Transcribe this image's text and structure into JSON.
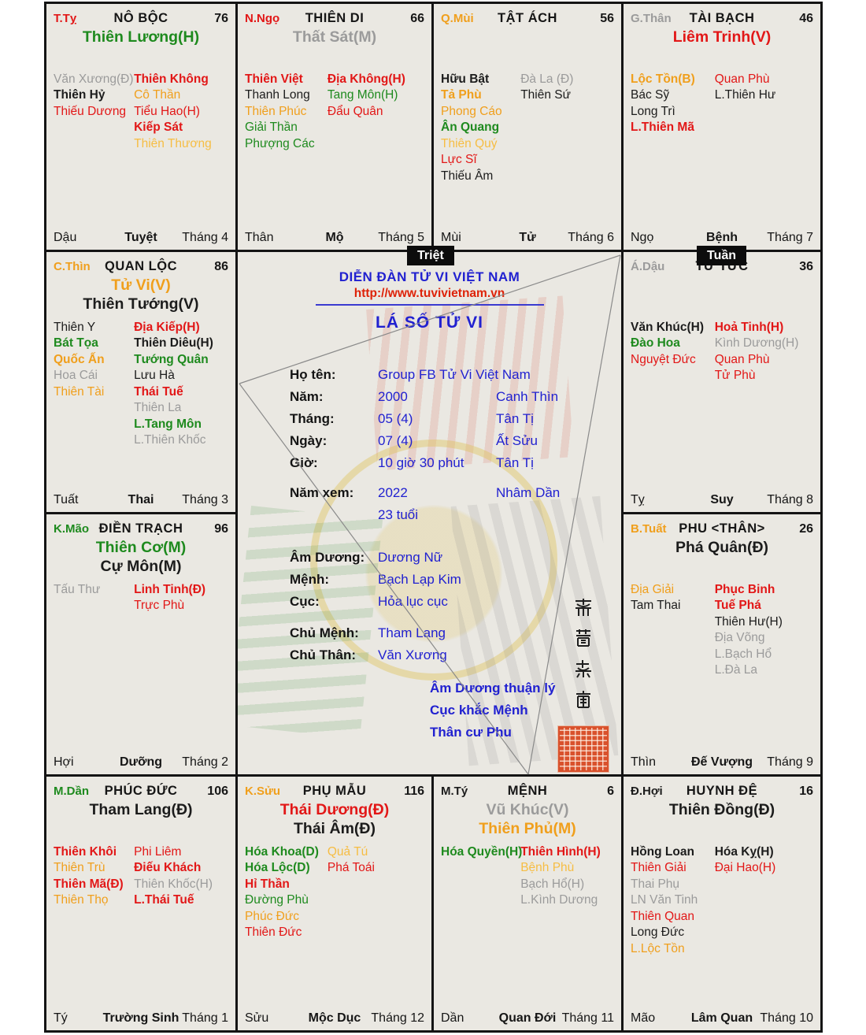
{
  "badges": {
    "triet": "Triệt",
    "tuan": "Tuần"
  },
  "center": {
    "site_title": "DIỄN ĐÀN TỬ VI VIỆT NAM",
    "site_url": "http://www.tuvivietnam.vn",
    "chart_title": "LÁ SỐ TỬ VI",
    "info": [
      {
        "label": "Họ tên:",
        "value": "Group FB Tử Vi Việt Nam",
        "extra": ""
      },
      {
        "label": "Năm:",
        "value": "2000",
        "extra": "Canh Thìn"
      },
      {
        "label": "Tháng:",
        "value": "05 (4)",
        "extra": "Tân Tị"
      },
      {
        "label": "Ngày:",
        "value": "07 (4)",
        "extra": "Ất Sửu"
      },
      {
        "label": "Giờ:",
        "value": "10 giờ 30 phút",
        "extra": "Tân Tị"
      }
    ],
    "nam_xem": {
      "label": "Năm xem:",
      "value": "2022",
      "extra": "Nhâm Dần",
      "age": "23 tuổi"
    },
    "attrs": [
      {
        "label": "Âm Dương:",
        "value": "Dương Nữ"
      },
      {
        "label": "Mệnh:",
        "value": "Bạch Lạp Kim"
      },
      {
        "label": "Cục:",
        "value": "Hỏa lục cục"
      }
    ],
    "chu": [
      {
        "label": "Chủ Mệnh:",
        "value": "Tham Lang"
      },
      {
        "label": "Chủ Thân:",
        "value": "Văn Xương"
      }
    ],
    "notes": [
      "Âm Dương thuận lý",
      "Cục khắc Mệnh",
      "Thân cư Phu"
    ],
    "seal_text": "紫微越南"
  },
  "palaces": [
    {
      "corner": "T.Tỵ",
      "corner_c": "red",
      "name": "NÔ BỘC",
      "num": "76",
      "mains": [
        {
          "t": "Thiên Lương(H)",
          "c": "green",
          "b": true
        }
      ],
      "left": [
        {
          "t": "Văn Xương(Đ)",
          "c": "gray"
        },
        {
          "t": "Thiên Hỷ",
          "c": "black",
          "b": true
        },
        {
          "t": "Thiếu Dương",
          "c": "red"
        }
      ],
      "right": [
        {
          "t": "Thiên Không",
          "c": "red",
          "b": true
        },
        {
          "t": "Cô Thần",
          "c": "orange"
        },
        {
          "t": "Tiểu Hao(H)",
          "c": "red"
        },
        {
          "t": "Kiếp Sát",
          "c": "red",
          "b": true
        },
        {
          "t": "Thiên Thương",
          "c": "yellow"
        }
      ],
      "foot": {
        "branch": "Dậu",
        "stage": "Tuyệt",
        "month": "Tháng 4"
      }
    },
    {
      "corner": "N.Ngọ",
      "corner_c": "red",
      "name": "THIÊN DI",
      "num": "66",
      "mains": [
        {
          "t": "Thất Sát(M)",
          "c": "gray",
          "b": true
        }
      ],
      "left": [
        {
          "t": "Thiên Việt",
          "c": "red",
          "b": true
        },
        {
          "t": "Thanh Long",
          "c": "black"
        },
        {
          "t": "Thiên Phúc",
          "c": "orange"
        },
        {
          "t": "Giải Thần",
          "c": "green"
        },
        {
          "t": "Phượng Các",
          "c": "green"
        }
      ],
      "right": [
        {
          "t": "Địa Không(H)",
          "c": "red",
          "b": true
        },
        {
          "t": "Tang Môn(H)",
          "c": "green"
        },
        {
          "t": "Đẩu Quân",
          "c": "red"
        }
      ],
      "foot": {
        "branch": "Thân",
        "stage": "Mộ",
        "month": "Tháng 5"
      }
    },
    {
      "corner": "Q.Mùi",
      "corner_c": "orange",
      "name": "TẬT ÁCH",
      "num": "56",
      "mains": [],
      "left": [
        {
          "t": "Hữu Bật",
          "c": "black",
          "b": true
        },
        {
          "t": "Tả Phù",
          "c": "orange",
          "b": true
        },
        {
          "t": "Phong Cáo",
          "c": "orange"
        },
        {
          "t": "Ân Quang",
          "c": "green",
          "b": true
        },
        {
          "t": "Thiên Quý",
          "c": "yellow"
        },
        {
          "t": "Lực Sĩ",
          "c": "red"
        },
        {
          "t": "Thiếu Âm",
          "c": "black"
        }
      ],
      "right": [
        {
          "t": "Đà La (Đ)",
          "c": "gray"
        },
        {
          "t": "Thiên Sứ",
          "c": "black"
        }
      ],
      "foot": {
        "branch": "Mùi",
        "stage": "Tử",
        "month": "Tháng 6"
      }
    },
    {
      "corner": "G.Thân",
      "corner_c": "gray",
      "name": "TÀI BẠCH",
      "num": "46",
      "mains": [
        {
          "t": "Liêm Trinh(V)",
          "c": "red",
          "b": true
        }
      ],
      "left": [
        {
          "t": "Lộc Tồn(B)",
          "c": "orange",
          "b": true
        },
        {
          "t": "Bác Sỹ",
          "c": "black"
        },
        {
          "t": "Long Trì",
          "c": "black"
        },
        {
          "t": "L.Thiên Mã",
          "c": "red",
          "b": true
        }
      ],
      "right": [
        {
          "t": "Quan Phù",
          "c": "red"
        },
        {
          "t": "L.Thiên Hư",
          "c": "black"
        }
      ],
      "foot": {
        "branch": "Ngọ",
        "stage": "Bệnh",
        "month": "Tháng 7"
      }
    },
    {
      "corner": "C.Thìn",
      "corner_c": "orange",
      "name": "QUAN LỘC",
      "num": "86",
      "mains": [
        {
          "t": "Tử Vi(V)",
          "c": "orange",
          "b": true
        },
        {
          "t": "Thiên Tướng(V)",
          "c": "black",
          "b": true
        }
      ],
      "left": [
        {
          "t": "Thiên Y",
          "c": "black"
        },
        {
          "t": "Bát Tọa",
          "c": "green",
          "b": true
        },
        {
          "t": "Quốc Ấn",
          "c": "orange",
          "b": true
        },
        {
          "t": "Hoa Cái",
          "c": "gray"
        },
        {
          "t": "Thiên Tài",
          "c": "orange"
        }
      ],
      "right": [
        {
          "t": "Địa Kiếp(H)",
          "c": "red",
          "b": true
        },
        {
          "t": "Thiên Diêu(H)",
          "c": "black",
          "b": true
        },
        {
          "t": "Tướng Quân",
          "c": "green",
          "b": true
        },
        {
          "t": "Lưu Hà",
          "c": "black"
        },
        {
          "t": "Thái Tuế",
          "c": "red",
          "b": true
        },
        {
          "t": "Thiên La",
          "c": "gray"
        },
        {
          "t": "L.Tang Môn",
          "c": "green",
          "b": true
        },
        {
          "t": "L.Thiên Khốc",
          "c": "gray"
        }
      ],
      "foot": {
        "branch": "Tuất",
        "stage": "Thai",
        "month": "Tháng 3"
      }
    },
    {
      "corner": "Á.Dậu",
      "corner_c": "gray",
      "name": "TỬ TỨC",
      "num": "36",
      "mains": [],
      "left": [
        {
          "t": "Văn Khúc(H)",
          "c": "black",
          "b": true
        },
        {
          "t": "Đào Hoa",
          "c": "green",
          "b": true
        },
        {
          "t": "Nguyệt Đức",
          "c": "red"
        }
      ],
      "right": [
        {
          "t": "Hoả Tinh(H)",
          "c": "red",
          "b": true
        },
        {
          "t": "Kình Dương(H)",
          "c": "gray"
        },
        {
          "t": "Quan Phù",
          "c": "red"
        },
        {
          "t": "Tử Phù",
          "c": "red"
        }
      ],
      "foot": {
        "branch": "Tỵ",
        "stage": "Suy",
        "month": "Tháng 8"
      }
    },
    {
      "corner": "K.Mão",
      "corner_c": "green",
      "name": "ĐIỀN TRẠCH",
      "num": "96",
      "mains": [
        {
          "t": "Thiên Cơ(M)",
          "c": "green",
          "b": true
        },
        {
          "t": "Cự Môn(M)",
          "c": "black",
          "b": true
        }
      ],
      "left": [
        {
          "t": "Tấu Thư",
          "c": "gray"
        }
      ],
      "right": [
        {
          "t": "Linh Tinh(Đ)",
          "c": "red",
          "b": true
        },
        {
          "t": "Trực Phù",
          "c": "red"
        }
      ],
      "foot": {
        "branch": "Hợi",
        "stage": "Dưỡng",
        "month": "Tháng 2"
      }
    },
    {
      "corner": "B.Tuất",
      "corner_c": "orange",
      "name": "PHU <THÂN>",
      "num": "26",
      "mains": [
        {
          "t": "Phá Quân(Đ)",
          "c": "black",
          "b": true
        }
      ],
      "left": [
        {
          "t": "Địa Giải",
          "c": "orange"
        },
        {
          "t": "Tam Thai",
          "c": "black"
        }
      ],
      "right": [
        {
          "t": "Phục Binh",
          "c": "red",
          "b": true
        },
        {
          "t": "Tuế Phá",
          "c": "red",
          "b": true
        },
        {
          "t": "Thiên Hư(H)",
          "c": "black"
        },
        {
          "t": "Địa Võng",
          "c": "gray"
        },
        {
          "t": "L.Bạch Hổ",
          "c": "gray"
        },
        {
          "t": "L.Đà La",
          "c": "gray"
        }
      ],
      "foot": {
        "branch": "Thìn",
        "stage": "Đế Vượng",
        "month": "Tháng 9"
      }
    },
    {
      "corner": "M.Dần",
      "corner_c": "green",
      "name": "PHÚC ĐỨC",
      "num": "106",
      "mains": [
        {
          "t": "Tham Lang(Đ)",
          "c": "black",
          "b": true
        }
      ],
      "left": [
        {
          "t": "Thiên Khôi",
          "c": "red",
          "b": true
        },
        {
          "t": "Thiên Trù",
          "c": "orange"
        },
        {
          "t": "Thiên Mã(Đ)",
          "c": "red",
          "b": true
        },
        {
          "t": "Thiên Thọ",
          "c": "orange"
        }
      ],
      "right": [
        {
          "t": "Phi Liêm",
          "c": "red"
        },
        {
          "t": "Điếu Khách",
          "c": "red",
          "b": true
        },
        {
          "t": "Thiên Khốc(H)",
          "c": "gray"
        },
        {
          "t": "L.Thái Tuế",
          "c": "red",
          "b": true
        }
      ],
      "foot": {
        "branch": "Tý",
        "stage": "Trường Sinh",
        "month": "Tháng 1"
      }
    },
    {
      "corner": "K.Sửu",
      "corner_c": "orange",
      "name": "PHỤ MẪU",
      "num": "116",
      "mains": [
        {
          "t": "Thái Dương(Đ)",
          "c": "red",
          "b": true
        },
        {
          "t": "Thái Âm(Đ)",
          "c": "black",
          "b": true
        }
      ],
      "left": [
        {
          "t": "Hóa Khoa(D)",
          "c": "green",
          "b": true
        },
        {
          "t": "Hóa Lộc(D)",
          "c": "green",
          "b": true
        },
        {
          "t": "Hỉ Thần",
          "c": "red",
          "b": true
        },
        {
          "t": "Đường Phù",
          "c": "green"
        },
        {
          "t": "Phúc Đức",
          "c": "orange"
        },
        {
          "t": "Thiên Đức",
          "c": "red"
        }
      ],
      "right": [
        {
          "t": "Quả Tú",
          "c": "yellow"
        },
        {
          "t": "Phá Toái",
          "c": "red"
        }
      ],
      "foot": {
        "branch": "Sửu",
        "stage": "Mộc Dục",
        "month": "Tháng 12"
      }
    },
    {
      "corner": "M.Tý",
      "corner_c": "black",
      "name": "MỆNH",
      "num": "6",
      "mains": [
        {
          "t": "Vũ Khúc(V)",
          "c": "gray",
          "b": true
        },
        {
          "t": "Thiên Phủ(M)",
          "c": "orange",
          "b": true
        }
      ],
      "left": [
        {
          "t": "Hóa Quyền(H)",
          "c": "green",
          "b": true
        }
      ],
      "right": [
        {
          "t": "Thiên Hình(H)",
          "c": "red",
          "b": true
        },
        {
          "t": "Bệnh Phù",
          "c": "yellow"
        },
        {
          "t": "Bạch Hổ(H)",
          "c": "gray"
        },
        {
          "t": "L.Kình Dương",
          "c": "gray"
        }
      ],
      "foot": {
        "branch": "Dần",
        "stage": "Quan Đới",
        "month": "Tháng 11"
      }
    },
    {
      "corner": "Đ.Hợi",
      "corner_c": "black",
      "name": "HUYNH ĐỆ",
      "num": "16",
      "mains": [
        {
          "t": "Thiên Đồng(Đ)",
          "c": "black",
          "b": true
        }
      ],
      "left": [
        {
          "t": "Hồng Loan",
          "c": "black",
          "b": true
        },
        {
          "t": "Thiên Giải",
          "c": "red"
        },
        {
          "t": "Thai Phụ",
          "c": "gray"
        },
        {
          "t": "LN Văn Tinh",
          "c": "gray"
        },
        {
          "t": "Thiên Quan",
          "c": "red"
        },
        {
          "t": "Long Đức",
          "c": "black"
        },
        {
          "t": "L.Lộc Tồn",
          "c": "orange"
        }
      ],
      "right": [
        {
          "t": "Hóa Kỵ(H)",
          "c": "black",
          "b": true
        },
        {
          "t": "Đại Hao(H)",
          "c": "red"
        }
      ],
      "foot": {
        "branch": "Mão",
        "stage": "Lâm Quan",
        "month": "Tháng 10"
      }
    }
  ]
}
